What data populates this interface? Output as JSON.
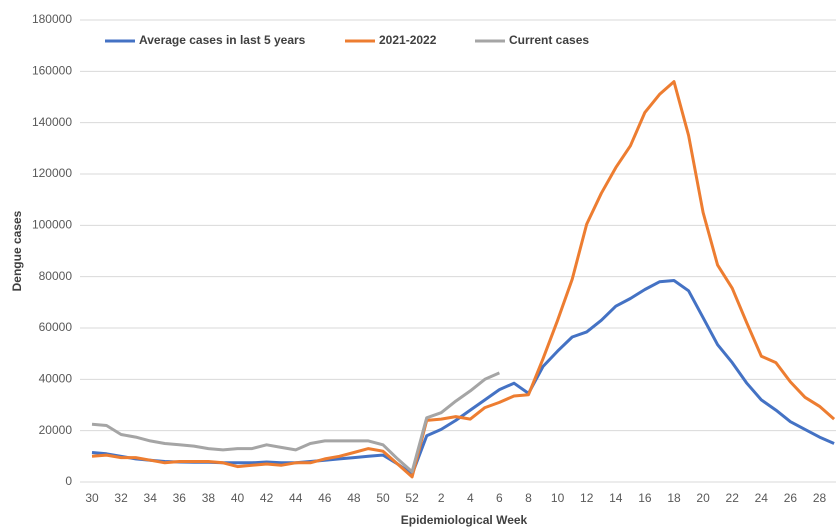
{
  "chart_data": {
    "type": "line",
    "x_label": "Epidemiological Week",
    "y_label": "Dengue cases",
    "categories": [
      "30",
      null,
      "32",
      null,
      "34",
      null,
      "36",
      null,
      "38",
      null,
      "40",
      null,
      "42",
      null,
      "44",
      null,
      "46",
      null,
      "48",
      null,
      "50",
      null,
      "52",
      null,
      "2",
      null,
      "4",
      null,
      "6",
      null,
      "8",
      null,
      "10",
      null,
      "12",
      null,
      "14",
      null,
      "16",
      null,
      "18",
      null,
      "20",
      null,
      "22",
      null,
      "24",
      null,
      "26",
      null,
      "28",
      null
    ],
    "series": [
      {
        "name": "Average cases in last 5 years",
        "color": "#4472c4",
        "values": [
          11500,
          11000,
          10000,
          9000,
          8500,
          8000,
          7800,
          7700,
          7700,
          7500,
          7500,
          7500,
          7800,
          7500,
          7500,
          8000,
          8500,
          9000,
          9500,
          10000,
          10500,
          7000,
          3000,
          18000,
          20500,
          24000,
          28000,
          32000,
          36000,
          38500,
          34500,
          45000,
          51000,
          56500,
          58500,
          63000,
          68500,
          71500,
          75000,
          78000,
          78500,
          74500,
          64000,
          53500,
          46500,
          38500,
          32000,
          28000,
          23500,
          20500,
          17500,
          15000
        ]
      },
      {
        "name": "2021-2022",
        "color": "#ed7d31",
        "values": [
          10000,
          10500,
          9500,
          9500,
          8500,
          7500,
          8000,
          8000,
          8000,
          7500,
          6000,
          6500,
          7000,
          6500,
          7500,
          7500,
          9000,
          10000,
          11500,
          13000,
          12000,
          7000,
          2000,
          24000,
          24500,
          25500,
          24500,
          29000,
          31000,
          33500,
          34000,
          48000,
          63000,
          79000,
          100500,
          112500,
          122500,
          131000,
          144000,
          151000,
          156000,
          135000,
          105000,
          84500,
          75500,
          62000,
          49000,
          46500,
          39000,
          33000,
          29500,
          24500
        ]
      },
      {
        "name": "Current cases",
        "color": "#a5a5a5",
        "values": [
          22500,
          22000,
          18500,
          17500,
          16000,
          15000,
          14500,
          14000,
          13000,
          12500,
          13000,
          13000,
          14500,
          13500,
          12500,
          15000,
          16000,
          16000,
          16000,
          16000,
          14500,
          9000,
          4000,
          25000,
          27000,
          31500,
          35500,
          40000,
          42500,
          null,
          null,
          null,
          null,
          null,
          null,
          null,
          null,
          null,
          null,
          null,
          null,
          null,
          null,
          null,
          null,
          null,
          null,
          null,
          null,
          null,
          null,
          null
        ]
      }
    ],
    "ylim": [
      0,
      180000
    ],
    "yticks": [
      0,
      20000,
      40000,
      60000,
      80000,
      100000,
      120000,
      140000,
      160000,
      180000
    ],
    "grid": true,
    "legend": "top-left"
  }
}
